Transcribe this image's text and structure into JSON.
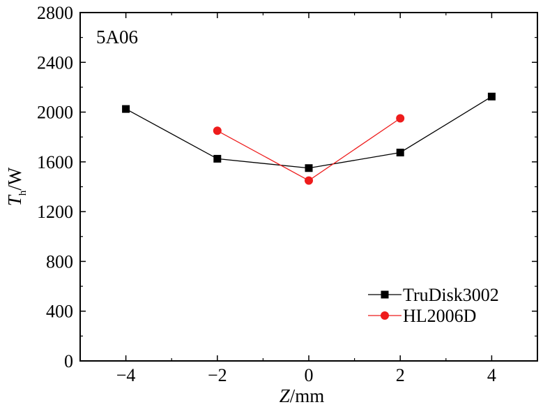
{
  "chart_data": {
    "type": "line",
    "annotation": "5A06",
    "xlabel_var": "Z",
    "xlabel_unit": "/mm",
    "ylabel_var": "T",
    "ylabel_sub": "h",
    "ylabel_unit": "/W",
    "xlim": [
      -5,
      5
    ],
    "ylim": [
      0,
      2800
    ],
    "x_ticks": [
      -4,
      -2,
      0,
      2,
      4
    ],
    "x_tick_labels": [
      "−4",
      "−2",
      "0",
      "2",
      "4"
    ],
    "y_ticks": [
      0,
      400,
      800,
      1200,
      1600,
      2000,
      2400,
      2800
    ],
    "y_tick_labels": [
      "0",
      "400",
      "800",
      "1200",
      "1600",
      "2000",
      "2400",
      "2800"
    ],
    "legend_position": "bottom-right",
    "series": [
      {
        "name": "TruDisk3002",
        "marker": "square",
        "color": "#000000",
        "x": [
          -4,
          -2,
          0,
          2,
          4
        ],
        "y": [
          2025,
          1625,
          1550,
          1675,
          2125
        ]
      },
      {
        "name": "HL2006D",
        "marker": "circle",
        "color": "#ee1c1c",
        "x": [
          -2,
          0,
          2
        ],
        "y": [
          1850,
          1450,
          1950
        ]
      }
    ]
  }
}
